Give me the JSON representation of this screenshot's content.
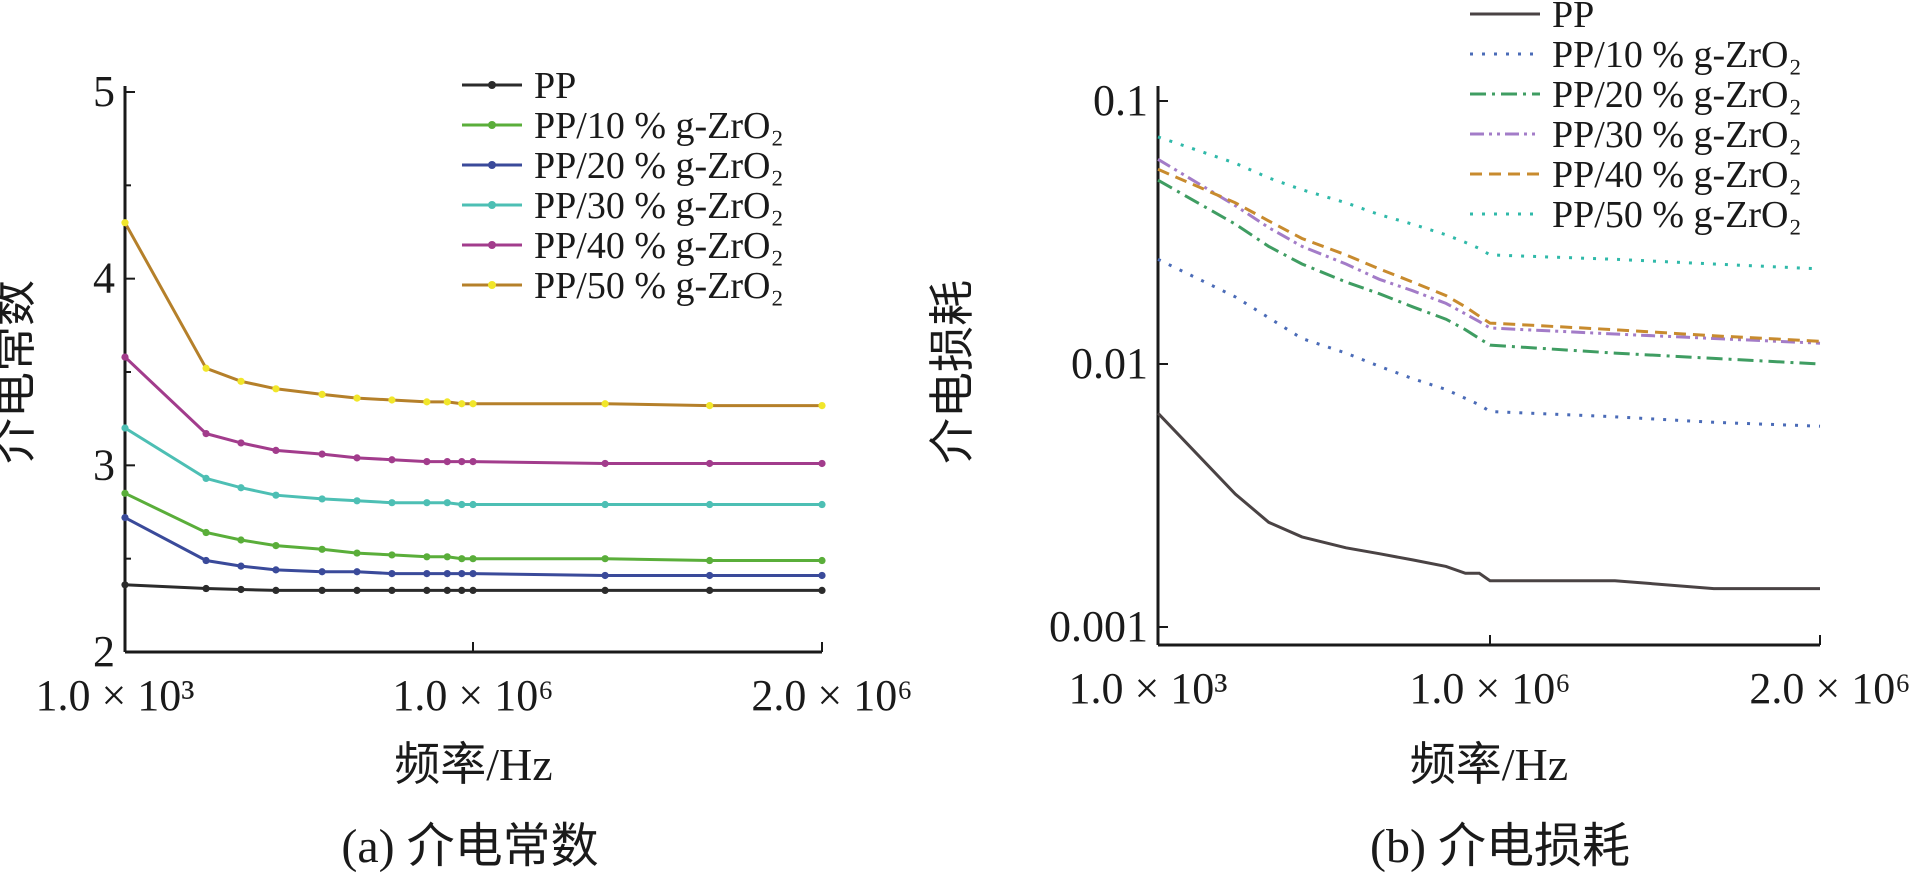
{
  "chart_data": [
    {
      "type": "line",
      "caption": "(a) 介电常数",
      "xlabel": "频率/Hz",
      "ylabel": "介电常数",
      "xticks": [
        "1.0 × 10³",
        "1.0 × 10⁶",
        "2.0 × 10⁶"
      ],
      "xlim": [
        1000,
        2000000
      ],
      "ylim": [
        2,
        5
      ],
      "yticks": [
        2,
        3,
        4,
        5
      ],
      "grid": false,
      "legend_position": "top-right",
      "x": [
        1000,
        5000,
        10000,
        20000,
        50000,
        100000,
        200000,
        400000,
        600000,
        800000,
        1000000,
        1300000,
        1600000,
        2000000
      ],
      "series": [
        {
          "name": "PP",
          "color": "#2b2b2b",
          "marker": "dot",
          "values": [
            2.36,
            2.34,
            2.335,
            2.33,
            2.33,
            2.33,
            2.33,
            2.33,
            2.33,
            2.33,
            2.33,
            2.33,
            2.33,
            2.33
          ]
        },
        {
          "name": "PP/10 % g-ZrO₂",
          "color": "#5aae3a",
          "marker": "dot",
          "values": [
            2.85,
            2.64,
            2.6,
            2.57,
            2.55,
            2.53,
            2.52,
            2.51,
            2.51,
            2.5,
            2.5,
            2.5,
            2.49,
            2.49
          ]
        },
        {
          "name": "PP/20 % g-ZrO₂",
          "color": "#3a4a9a",
          "marker": "dot",
          "values": [
            2.72,
            2.49,
            2.46,
            2.44,
            2.43,
            2.43,
            2.42,
            2.42,
            2.42,
            2.42,
            2.42,
            2.41,
            2.41,
            2.41
          ]
        },
        {
          "name": "PP/30 % g-ZrO₂",
          "color": "#4dbfb4",
          "marker": "dot",
          "values": [
            3.2,
            2.93,
            2.88,
            2.84,
            2.82,
            2.81,
            2.8,
            2.8,
            2.8,
            2.79,
            2.79,
            2.79,
            2.79,
            2.79
          ]
        },
        {
          "name": "PP/40 % g-ZrO₂",
          "color": "#a23c8c",
          "marker": "dot",
          "values": [
            3.58,
            3.17,
            3.12,
            3.08,
            3.06,
            3.04,
            3.03,
            3.02,
            3.02,
            3.02,
            3.02,
            3.01,
            3.01,
            3.01
          ]
        },
        {
          "name": "PP/50 % g-ZrO₂",
          "color": "#f1e62a",
          "line_color": "#b5802a",
          "marker": "dot",
          "values": [
            4.3,
            3.52,
            3.45,
            3.41,
            3.38,
            3.36,
            3.35,
            3.34,
            3.34,
            3.33,
            3.33,
            3.33,
            3.32,
            3.32
          ]
        }
      ]
    },
    {
      "type": "line",
      "caption": "(b) 介电损耗",
      "xlabel": "频率/Hz",
      "ylabel": "介电损耗",
      "xticks": [
        "1.0 × 10³",
        "1.0 × 10⁶",
        "2.0 × 10⁶"
      ],
      "xlim": [
        1000,
        2000000
      ],
      "ylim": [
        0.0008,
        0.12
      ],
      "yscale": "log",
      "yticks": [
        "0.001",
        "0.01",
        "0.1"
      ],
      "grid": false,
      "legend_position": "top-right",
      "x": [
        1000,
        5000,
        10000,
        20000,
        50000,
        100000,
        200000,
        400000,
        600000,
        800000,
        1000000,
        1300000,
        1600000,
        2000000
      ],
      "series": [
        {
          "name": "PP",
          "color": "#4a4344",
          "dash": "solid",
          "values": [
            0.0065,
            0.0032,
            0.0025,
            0.0022,
            0.002,
            0.0019,
            0.0018,
            0.0017,
            0.0016,
            0.0016,
            0.0015,
            0.0015,
            0.0014,
            0.0014
          ]
        },
        {
          "name": "PP/10 % g-ZrO₂",
          "color": "#4a6bb7",
          "dash": "dot",
          "values": [
            0.025,
            0.018,
            0.015,
            0.0125,
            0.011,
            0.0098,
            0.0088,
            0.008,
            0.0074,
            0.007,
            0.0066,
            0.0063,
            0.006,
            0.0058
          ]
        },
        {
          "name": "PP/20 % g-ZrO₂",
          "color": "#3f9d62",
          "dash": "dashdot",
          "values": [
            0.05,
            0.034,
            0.028,
            0.024,
            0.0205,
            0.0185,
            0.0165,
            0.0148,
            0.0135,
            0.0125,
            0.0118,
            0.011,
            0.0105,
            0.01
          ]
        },
        {
          "name": "PP/30 % g-ZrO₂",
          "color": "#a37cc8",
          "dash": "dashdotdot",
          "values": [
            0.06,
            0.04,
            0.033,
            0.028,
            0.024,
            0.021,
            0.019,
            0.017,
            0.0155,
            0.0145,
            0.0137,
            0.013,
            0.0125,
            0.012
          ]
        },
        {
          "name": "PP/40 % g-ZrO₂",
          "color": "#c88b2e",
          "dash": "dash",
          "values": [
            0.055,
            0.041,
            0.035,
            0.03,
            0.026,
            0.023,
            0.0205,
            0.0182,
            0.0165,
            0.0152,
            0.0143,
            0.0135,
            0.0128,
            0.0122
          ]
        },
        {
          "name": "PP/50 % g-ZrO₂",
          "color": "#2fb9a9",
          "dash": "dot",
          "values": [
            0.073,
            0.058,
            0.051,
            0.046,
            0.041,
            0.037,
            0.034,
            0.031,
            0.029,
            0.0275,
            0.026,
            0.025,
            0.024,
            0.023
          ]
        }
      ]
    }
  ]
}
